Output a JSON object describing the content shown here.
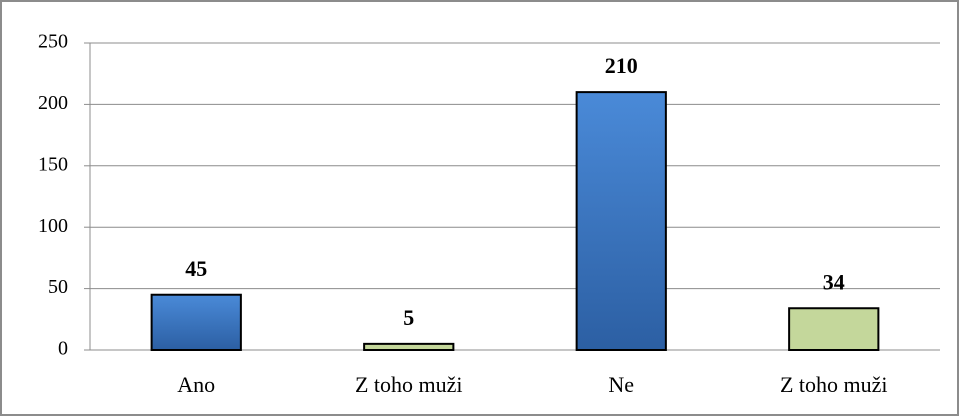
{
  "chart_data": {
    "type": "bar",
    "categories": [
      "Ano",
      "Z toho muži",
      "Ne",
      "Z toho muži"
    ],
    "values": [
      45,
      5,
      210,
      34
    ],
    "colors": [
      "#3c7ccc",
      "#c4d79b",
      "#3c7ccc",
      "#c4d79b"
    ],
    "ylim": [
      0,
      250
    ],
    "yticks": [
      0,
      50,
      100,
      150,
      200,
      250
    ],
    "grid": true
  }
}
